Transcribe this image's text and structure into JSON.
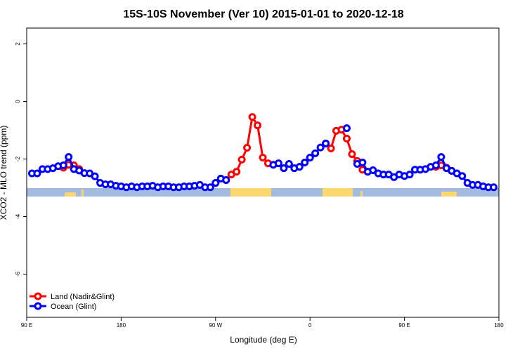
{
  "chart_data": {
    "type": "line",
    "title": "15S-10S November (Ver 10)   2015-01-01 to 2020-12-18",
    "x_label": "Longitude (deg E)",
    "y_label": "XCO2 - MLO trend (ppm)",
    "xlim": [
      90,
      540
    ],
    "xticks": [
      {
        "value": 90,
        "label": "90 E"
      },
      180,
      {
        "value": 270,
        "label": "90 W"
      },
      {
        "value": 360,
        "label": "0"
      },
      {
        "value": 450,
        "label": "90 E"
      },
      {
        "value": 540,
        "label": "180"
      }
    ],
    "ylim": [
      -7.5,
      2.55
    ],
    "yticks": [
      -6,
      -4,
      -2,
      0,
      2
    ],
    "legend": "bottom-left",
    "series": [
      {
        "name": "Land (Nadir&Glint)",
        "color": "#ff0000",
        "x": [
          125,
          130,
          135,
          140,
          145,
          280,
          285,
          290,
          295,
          300,
          305,
          310,
          315,
          320,
          325,
          375,
          380,
          385,
          390,
          395,
          400,
          405,
          410,
          415,
          420,
          480,
          485,
          490,
          495
        ],
        "values": [
          -2.3,
          -2.2,
          -2.22,
          -2.35,
          null,
          -2.73,
          -2.54,
          -2.44,
          -2.02,
          -1.61,
          -0.54,
          -0.83,
          -1.95,
          -2.15,
          null,
          -1.46,
          -1.63,
          -1.02,
          -0.98,
          -1.29,
          -1.83,
          -2.07,
          -2.37,
          -2.44,
          null,
          -2.27,
          -2.22,
          -2.3,
          -2.41
        ]
      },
      {
        "name": "Ocean (Glint)",
        "color": "#0000ff",
        "x": [
          95,
          100,
          105,
          110,
          115,
          120,
          125,
          130,
          135,
          140,
          145,
          150,
          155,
          160,
          165,
          170,
          175,
          180,
          185,
          190,
          195,
          200,
          205,
          210,
          215,
          220,
          225,
          230,
          235,
          240,
          245,
          250,
          255,
          260,
          265,
          270,
          275,
          280,
          285,
          325,
          330,
          335,
          340,
          345,
          350,
          355,
          360,
          365,
          370,
          375,
          380,
          395,
          400,
          405,
          410,
          415,
          420,
          425,
          430,
          435,
          440,
          445,
          450,
          455,
          460,
          465,
          470,
          475,
          480,
          485,
          490,
          495,
          500,
          505,
          510,
          515,
          520,
          525,
          530,
          535
        ],
        "values": [
          -2.5,
          -2.5,
          -2.35,
          -2.35,
          -2.32,
          -2.25,
          -2.22,
          -1.93,
          -2.35,
          -2.4,
          -2.49,
          -2.5,
          -2.6,
          -2.83,
          -2.88,
          -2.88,
          -2.93,
          -2.95,
          -2.98,
          -2.95,
          -2.98,
          -2.95,
          -2.95,
          -2.93,
          -2.98,
          -2.95,
          -2.95,
          -2.98,
          -2.98,
          -2.95,
          -2.95,
          -2.93,
          -2.9,
          -2.98,
          -2.98,
          -2.83,
          -2.68,
          -2.73,
          null,
          -2.2,
          -2.15,
          -2.32,
          -2.17,
          -2.32,
          -2.27,
          -2.12,
          -1.95,
          -1.8,
          -1.6,
          -1.46,
          null,
          -0.93,
          null,
          -2.17,
          -2.12,
          -2.44,
          -2.39,
          -2.5,
          -2.54,
          -2.54,
          -2.63,
          -2.54,
          -2.59,
          -2.54,
          -2.37,
          -2.37,
          -2.35,
          -2.27,
          -2.22,
          -1.93,
          -2.32,
          -2.41,
          -2.5,
          -2.59,
          -2.83,
          -2.9,
          -2.9,
          -2.95,
          -2.98,
          -2.98
        ]
      }
    ]
  }
}
